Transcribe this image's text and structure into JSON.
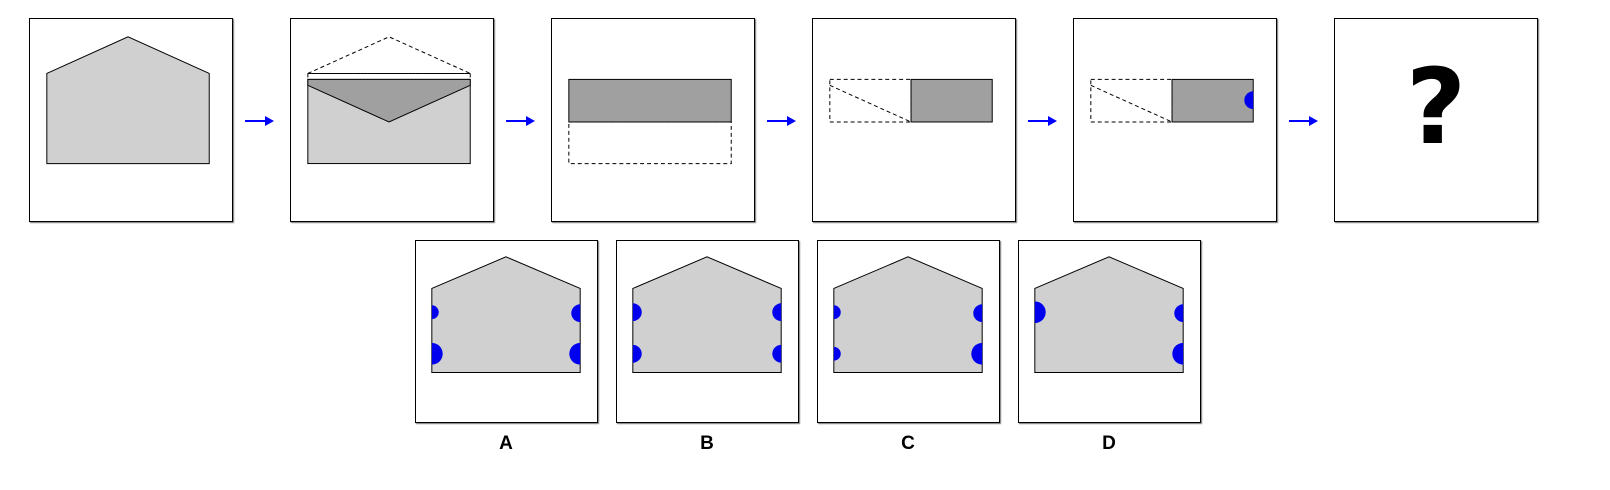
{
  "question_mark": "?",
  "options": [
    {
      "label": "A"
    },
    {
      "label": "B"
    },
    {
      "label": "C"
    },
    {
      "label": "D"
    }
  ],
  "colors": {
    "paper_fill": "#d0d0d0",
    "folded_fill": "#a0a0a0",
    "hole": "#0000ee",
    "arrow": "#0000ff",
    "outline": "#000000"
  }
}
